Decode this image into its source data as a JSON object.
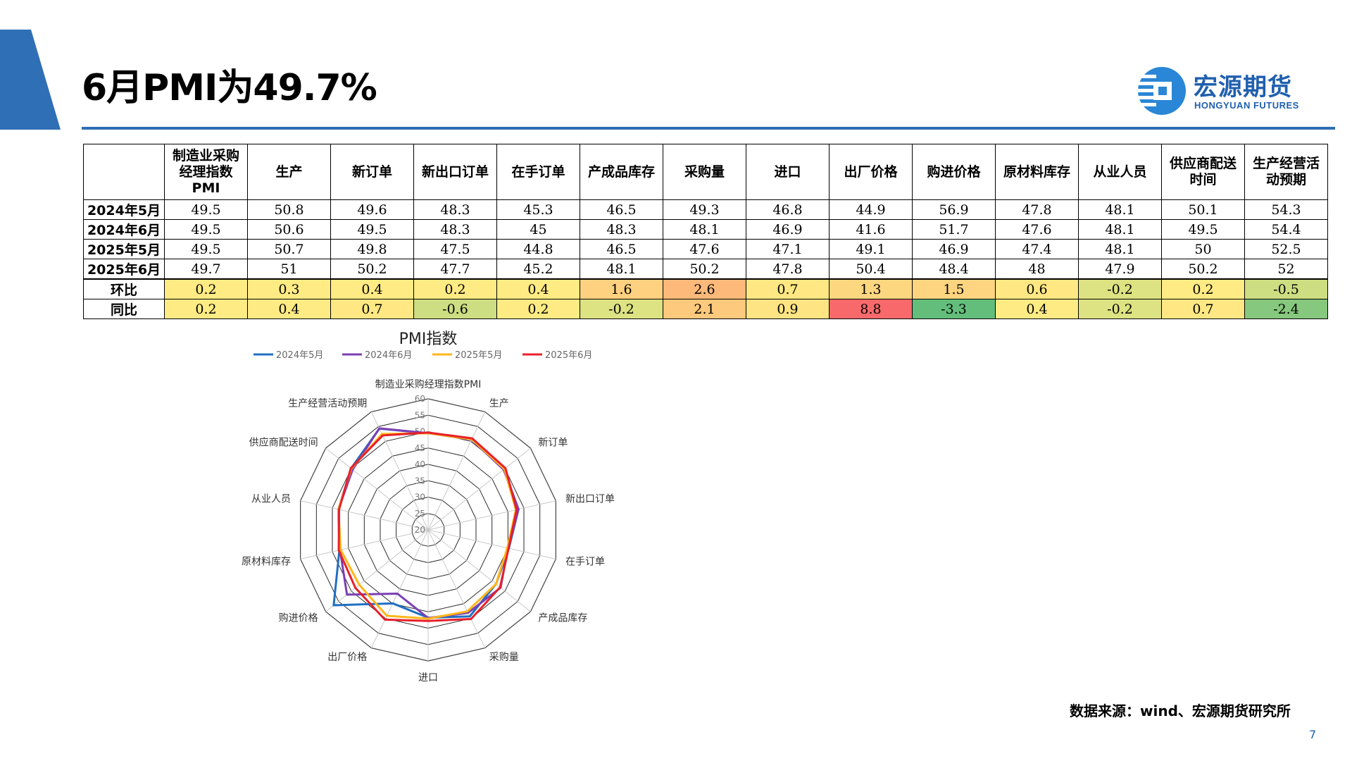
{
  "title": "6月PMI为49.7%",
  "logo": {
    "cn": "宏源期货",
    "en": "HONGYUAN FUTURES"
  },
  "table": {
    "headers": [
      "制造业采购经理指数PMI",
      "生产",
      "新订单",
      "新出口订单",
      "在手订单",
      "产成品库存",
      "采购量",
      "进口",
      "出厂价格",
      "购进价格",
      "原材料库存",
      "从业人员",
      "供应商配送时间",
      "生产经营活动预期"
    ],
    "header_lines": [
      [
        "制造业采购",
        "经理指数",
        "PMI"
      ],
      [
        "生产"
      ],
      [
        "新订单"
      ],
      [
        "新出口订单"
      ],
      [
        "在手订单"
      ],
      [
        "产成品库存"
      ],
      [
        "采购量"
      ],
      [
        "进口"
      ],
      [
        "出厂价格"
      ],
      [
        "购进价格"
      ],
      [
        "原材料库存"
      ],
      [
        "从业人员"
      ],
      [
        "供应商配送",
        "时间"
      ],
      [
        "生产经营活",
        "动预期"
      ]
    ],
    "rows": [
      {
        "label": "2024年5月",
        "values": [
          "49.5",
          "50.8",
          "49.6",
          "48.3",
          "45.3",
          "46.5",
          "49.3",
          "46.8",
          "44.9",
          "56.9",
          "47.8",
          "48.1",
          "50.1",
          "54.3"
        ]
      },
      {
        "label": "2024年6月",
        "values": [
          "49.5",
          "50.6",
          "49.5",
          "48.3",
          "45",
          "48.3",
          "48.1",
          "46.9",
          "41.6",
          "51.7",
          "47.6",
          "48.1",
          "49.5",
          "54.4"
        ]
      },
      {
        "label": "2025年5月",
        "values": [
          "49.5",
          "50.7",
          "49.8",
          "47.5",
          "44.8",
          "46.5",
          "47.6",
          "47.1",
          "49.1",
          "46.9",
          "47.4",
          "48.1",
          "50",
          "52.5"
        ]
      },
      {
        "label": "2025年6月",
        "values": [
          "49.7",
          "51",
          "50.2",
          "47.7",
          "45.2",
          "48.1",
          "50.2",
          "47.8",
          "50.4",
          "48.4",
          "48",
          "47.9",
          "50.2",
          "52"
        ]
      }
    ],
    "change_rows": [
      {
        "label": "环比",
        "values": [
          "0.2",
          "0.3",
          "0.4",
          "0.2",
          "0.4",
          "1.6",
          "2.6",
          "0.7",
          "1.3",
          "1.5",
          "0.6",
          "-0.2",
          "0.2",
          "-0.5"
        ],
        "colors": [
          "#ffeb84",
          "#ffeb84",
          "#ffeb84",
          "#ffeb84",
          "#ffeb84",
          "#fdd17f",
          "#fcb97a",
          "#ffe883",
          "#fdd680",
          "#fdd47f",
          "#ffe883",
          "#dde282",
          "#ffeb84",
          "#cddd82"
        ]
      },
      {
        "label": "同比",
        "values": [
          "0.2",
          "0.4",
          "0.7",
          "-0.6",
          "0.2",
          "-0.2",
          "2.1",
          "0.9",
          "8.8",
          "-3.3",
          "0.4",
          "-0.2",
          "0.7",
          "-2.4"
        ],
        "colors": [
          "#ffeb84",
          "#ffeb84",
          "#ffe883",
          "#cddd82",
          "#ffeb84",
          "#dde282",
          "#fdc97c",
          "#ffe483",
          "#f8696b",
          "#63be7b",
          "#ffeb84",
          "#dde282",
          "#ffe883",
          "#86c87d"
        ]
      }
    ]
  },
  "chart_data": {
    "type": "radar",
    "title": "PMI指数",
    "axes": [
      "制造业采购经理指数PMI",
      "生产",
      "新订单",
      "新出口订单",
      "在手订单",
      "产成品库存",
      "采购量",
      "进口",
      "出厂价格",
      "购进价格",
      "原材料库存",
      "从业人员",
      "供应商配送时间",
      "生产经营活动预期"
    ],
    "rlim": [
      20,
      60
    ],
    "ticks": [
      20,
      25,
      30,
      35,
      40,
      45,
      50,
      55,
      60
    ],
    "legend_position": "top",
    "series": [
      {
        "name": "2024年5月",
        "color": "#1f6fc1",
        "values": [
          49.5,
          50.8,
          49.6,
          48.3,
          45.3,
          46.5,
          49.3,
          46.8,
          44.9,
          56.9,
          47.8,
          48.1,
          50.1,
          54.3
        ]
      },
      {
        "name": "2024年6月",
        "color": "#7b3fb3",
        "values": [
          49.5,
          50.6,
          49.5,
          48.3,
          45,
          48.3,
          48.1,
          46.9,
          41.6,
          51.7,
          47.6,
          48.1,
          49.5,
          54.4
        ]
      },
      {
        "name": "2025年5月",
        "color": "#ffb619",
        "values": [
          49.5,
          50.7,
          49.8,
          47.5,
          44.8,
          46.5,
          47.6,
          47.1,
          49.1,
          46.9,
          47.4,
          48.1,
          50,
          52.5
        ]
      },
      {
        "name": "2025年6月",
        "color": "#e8202a",
        "values": [
          49.7,
          51,
          50.2,
          47.7,
          45.2,
          48.1,
          50.2,
          47.8,
          50.4,
          48.4,
          48,
          47.9,
          50.2,
          52
        ]
      }
    ]
  },
  "source": "数据来源：wind、宏源期货研究所",
  "page_number": "7",
  "colors": {
    "accent": "#2e6db4",
    "brand": "#1f5fae"
  }
}
